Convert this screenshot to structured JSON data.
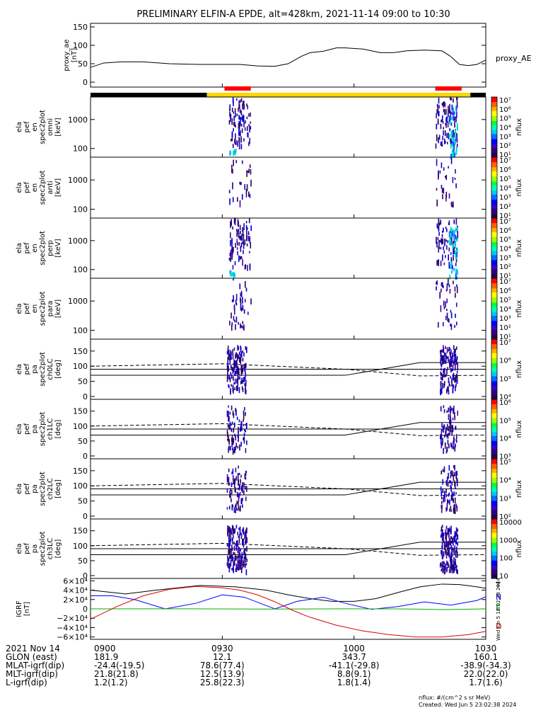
{
  "title": "PRELIMINARY ELFIN-A EPDE, alt=428km, 2021-11-14 09:00 to 10:30",
  "footer": {
    "units": "nflux: #/(cm^2 s sr MeV)",
    "created": "Created: Wed Jun  5 23:02:38 2024",
    "side_stamp": "Wed Jun  5 18:02:38 2024"
  },
  "time_axis": {
    "rows": [
      {
        "label": "2021 Nov 14",
        "values": [
          "0900",
          "0930",
          "1000",
          "1030"
        ]
      },
      {
        "label": "GLON (east)",
        "values": [
          "181.9",
          "12.1",
          "343.7",
          "160.1"
        ]
      },
      {
        "label": "MLAT-igrf(dip)",
        "values": [
          "-24.4(-19.5)",
          "78.6(77.4)",
          "-41.1(-29.8)",
          "-38.9(-34.3)"
        ]
      },
      {
        "label": "MLT-igrf(dip)",
        "values": [
          "21.8(21.8)",
          "12.5(13.9)",
          "8.8(9.1)",
          "22.0(22.0)"
        ]
      },
      {
        "label": "L-igrf(dip)",
        "values": [
          "1.2(1.2)",
          "25.8(22.3)",
          "1.8(1.4)",
          "1.7(1.6)"
        ]
      }
    ]
  },
  "chart_data": [
    {
      "type": "line",
      "ylabel": [
        "proxy_ae",
        "[nT]"
      ],
      "ylim": [
        0,
        150
      ],
      "yticks": [
        "0",
        "50",
        "100",
        "150"
      ],
      "series": [
        {
          "name": "proxy_AE",
          "x": [
            0,
            3,
            7,
            12,
            18,
            25,
            32,
            34,
            38,
            42,
            45,
            48,
            50,
            53,
            56,
            58,
            62,
            66,
            69,
            72,
            76,
            80,
            82,
            84,
            86,
            88,
            90
          ],
          "y": [
            40,
            52,
            55,
            55,
            50,
            48,
            48,
            48,
            44,
            43,
            50,
            70,
            80,
            84,
            93,
            93,
            90,
            80,
            80,
            85,
            87,
            85,
            70,
            48,
            45,
            48,
            60
          ]
        }
      ]
    },
    {
      "type": "heatmap",
      "ylabel": [
        "ela",
        "pef",
        "en",
        "spec2plot",
        "omni",
        "[keV]"
      ],
      "ylim_log": [
        50,
        6000
      ],
      "yticks": [
        "100",
        "1000"
      ],
      "colorbar": {
        "label": "nflux",
        "ticks": [
          "10¹",
          "10²",
          "10³",
          "10⁴",
          "10⁵",
          "10⁶",
          "10⁷"
        ]
      }
    },
    {
      "type": "heatmap",
      "ylabel": [
        "ela",
        "pef",
        "en",
        "spec2plot",
        "anti",
        "[keV]"
      ],
      "ylim_log": [
        50,
        6000
      ],
      "yticks": [
        "100",
        "1000"
      ],
      "colorbar": {
        "label": "nflux",
        "ticks": [
          "10¹",
          "10²",
          "10³",
          "10⁴",
          "10⁵",
          "10⁶",
          "10⁷"
        ]
      }
    },
    {
      "type": "heatmap",
      "ylabel": [
        "ela",
        "pef",
        "en",
        "spec2plot",
        "perp",
        "[keV]"
      ],
      "ylim_log": [
        50,
        6000
      ],
      "yticks": [
        "100",
        "1000"
      ],
      "colorbar": {
        "label": "nflux",
        "ticks": [
          "10¹",
          "10²",
          "10³",
          "10⁴",
          "10⁵",
          "10⁶",
          "10⁷"
        ]
      }
    },
    {
      "type": "heatmap",
      "ylabel": [
        "ela",
        "pef",
        "en",
        "spec2plot",
        "para",
        "[keV]"
      ],
      "ylim_log": [
        50,
        6000
      ],
      "yticks": [
        "100",
        "1000"
      ],
      "colorbar": {
        "label": "nflux",
        "ticks": [
          "10¹",
          "10²",
          "10³",
          "10⁴",
          "10⁵",
          "10⁶",
          "10⁷"
        ]
      }
    },
    {
      "type": "heatmap",
      "ylabel": [
        "ela",
        "pef",
        "pa",
        "spec2plot",
        "ch0LC",
        "[deg]"
      ],
      "ylim": [
        0,
        180
      ],
      "yticks": [
        "0",
        "50",
        "100",
        "150"
      ],
      "colorbar": {
        "label": "nflux",
        "ticks": [
          "10⁴",
          "10⁵",
          "10⁶",
          "10⁷"
        ]
      }
    },
    {
      "type": "heatmap",
      "ylabel": [
        "ela",
        "pef",
        "pa",
        "spec2plot",
        "ch1LC",
        "[deg]"
      ],
      "ylim": [
        0,
        180
      ],
      "yticks": [
        "0",
        "50",
        "100",
        "150"
      ],
      "colorbar": {
        "label": "nflux",
        "ticks": [
          "10³",
          "10⁴",
          "10⁵",
          "10⁶"
        ]
      }
    },
    {
      "type": "heatmap",
      "ylabel": [
        "ela",
        "pef",
        "pa",
        "spec2plot",
        "ch2LC",
        "[deg]"
      ],
      "ylim": [
        0,
        180
      ],
      "yticks": [
        "0",
        "50",
        "100",
        "150"
      ],
      "colorbar": {
        "label": "nflux",
        "ticks": [
          "10²",
          "10³",
          "10⁴",
          "10⁵"
        ]
      }
    },
    {
      "type": "heatmap",
      "ylabel": [
        "ela",
        "pef",
        "pa",
        "spec2plot",
        "ch3LC",
        "[deg]"
      ],
      "ylim": [
        0,
        180
      ],
      "yticks": [
        "0",
        "50",
        "100",
        "150"
      ],
      "colorbar": {
        "label": "nflux",
        "ticks": [
          "10",
          "100",
          "1000",
          "10000"
        ]
      }
    },
    {
      "type": "line",
      "ylabel": [
        "IGRF",
        "[nT]"
      ],
      "ylim": [
        -65000,
        65000
      ],
      "yticks": [
        "−6×10⁴",
        "−4×10⁴",
        "−2×10⁴",
        "0",
        "2×10⁴",
        "4×10⁴",
        "6×10⁴"
      ],
      "series": [
        {
          "name": "T",
          "color": "#000000",
          "x": [
            0,
            8,
            15,
            25,
            33,
            40,
            45,
            50,
            55,
            60,
            65,
            70,
            75,
            80,
            84,
            88,
            90
          ],
          "y": [
            40000,
            32000,
            40000,
            50000,
            47000,
            40000,
            30000,
            22000,
            16000,
            16000,
            22000,
            35000,
            47000,
            53000,
            52000,
            47000,
            44000
          ]
        },
        {
          "name": "N",
          "color": "#0000ff",
          "x": [
            0,
            5,
            10,
            17,
            24,
            30,
            35,
            42,
            47,
            53,
            58,
            64,
            70,
            76,
            82,
            88,
            90
          ],
          "y": [
            28000,
            28000,
            20000,
            0,
            12000,
            30000,
            25000,
            0,
            16000,
            25000,
            12000,
            -1000,
            5000,
            15000,
            8000,
            18000,
            26000
          ]
        },
        {
          "name": "E",
          "color": "#00b000",
          "x": [
            0,
            20,
            40,
            60,
            70,
            75,
            80,
            85,
            90
          ],
          "y": [
            0,
            200,
            -300,
            100,
            0,
            -500,
            -1500,
            -800,
            0
          ]
        },
        {
          "name": "D",
          "color": "#dd0000",
          "x": [
            0,
            6,
            12,
            18,
            24,
            30,
            34,
            38,
            42,
            46,
            50,
            56,
            62,
            68,
            74,
            80,
            86,
            90
          ],
          "y": [
            -22000,
            5000,
            28000,
            42000,
            48000,
            45000,
            40000,
            30000,
            15000,
            -3000,
            -18000,
            -35000,
            -47000,
            -55000,
            -60000,
            -60000,
            -55000,
            -48000
          ]
        }
      ]
    }
  ],
  "colors": {
    "nightside": "#000000",
    "dayside": "#ffd700",
    "science_zone": "#ff0000"
  }
}
